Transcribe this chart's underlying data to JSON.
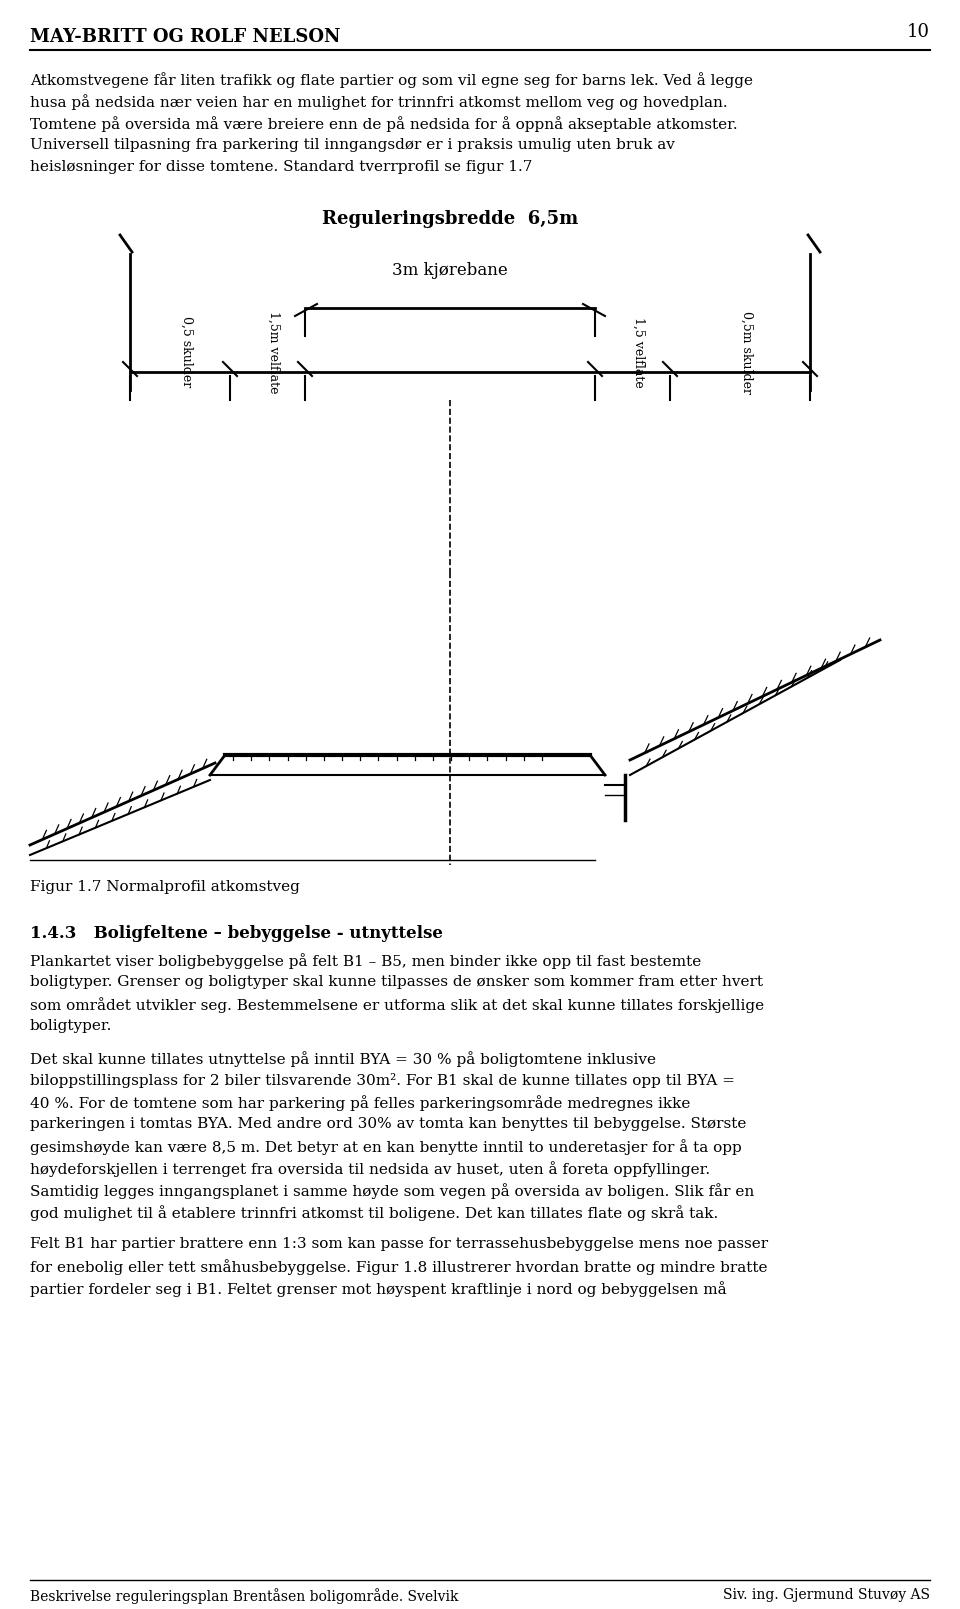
{
  "page_number": "10",
  "header_title": "MAY-BRITT OG ROLF NELSON",
  "footer_left": "Beskrivelse reguleringsplan Brentåsen boligområde. Svelvik",
  "footer_right": "Siv. ing. Gjermund Stuvøy AS",
  "para1_lines": [
    "Atkomstvegene får liten trafikk og flate partier og som vil egne seg for barns lek. Ved å legge",
    "husa på nedsida nær veien har en mulighet for trinnfri atkomst mellom veg og hovedplan.",
    "Tomtene på oversida må være breiere enn de på nedsida for å oppnå akseptable atkomster.",
    "Universell tilpasning fra parkering til inngangsdør er i praksis umulig uten bruk av",
    "heisløsninger for disse tomtene. Standard tverrprofil se figur 1.7"
  ],
  "reg_bredde_label": "Reguleringsbredde  6,5m",
  "kjørebane_label": "3m kjørebane",
  "rot_labels": [
    "0,5 skulder",
    "1,5m velflate",
    "1,5 velflate",
    "0,5m skulder"
  ],
  "fig_caption": "Figur 1.7 Normalprofil atkomstveg",
  "sec143_title": "1.4.3   Boligfeltene – bebyggelse - utnyttelse",
  "para3_lines": [
    "Plankartet viser boligbebyggelse på felt B1 – B5, men binder ikke opp til fast bestemte",
    "boligtyper. Grenser og boligtyper skal kunne tilpasses de ønsker som kommer fram etter hvert",
    "som området utvikler seg. Bestemmelsene er utforma slik at det skal kunne tillates forskjellige",
    "boligtyper."
  ],
  "para4_lines": [
    "Det skal kunne tillates utnyttelse på inntil BYA = 30 % på boligtomtene inklusive",
    "biloppstillingsplass for 2 biler tilsvarende 30m². For B1 skal de kunne tillates opp til BYA =",
    "40 %. For de tomtene som har parkering på felles parkeringsområde medregnes ikke",
    "parkeringen i tomtas BYA. Med andre ord 30% av tomta kan benyttes til bebyggelse. Største",
    "gesimshøyde kan være 8,5 m. Det betyr at en kan benytte inntil to underetasjer for å ta opp",
    "høydeforskjellen i terrenget fra oversida til nedsida av huset, uten å foreta oppfyllinger.",
    "Samtidig legges inngangsplanet i samme høyde som vegen på oversida av boligen. Slik får en",
    "god mulighet til å etablere trinnfri atkomst til boligene. Det kan tillates flate og skrå tak."
  ],
  "para5_lines": [
    "Felt B1 har partier brattere enn 1:3 som kan passe for terrassehusbebyggelse mens noe passer",
    "for enebolig eller tett småhusbebyggelse. Figur 1.8 illustrerer hvordan bratte og mindre bratte",
    "partier fordeler seg i B1. Feltet grenser mot høyspent kraftlinje i nord og bebyggelsen må"
  ]
}
